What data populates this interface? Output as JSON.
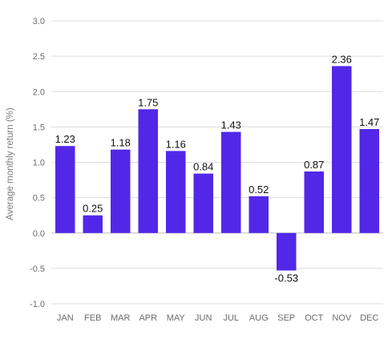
{
  "chart_data": {
    "type": "bar",
    "categories": [
      "JAN",
      "FEB",
      "MAR",
      "APR",
      "MAY",
      "JUN",
      "JUL",
      "AUG",
      "SEP",
      "OCT",
      "NOV",
      "DEC"
    ],
    "values": [
      1.23,
      0.25,
      1.18,
      1.75,
      1.16,
      0.84,
      1.43,
      0.52,
      -0.53,
      0.87,
      2.36,
      1.47
    ],
    "data_labels": [
      "1.23",
      "0.25",
      "1.18",
      "1.75",
      "1.16",
      "0.84",
      "1.43",
      "0.52",
      "-0.53",
      "0.87",
      "2.36",
      "1.47"
    ],
    "title": "",
    "xlabel": "",
    "ylabel": "Average monthly return (%)",
    "ylim": [
      -1.0,
      3.0
    ],
    "yticks": [
      -1.0,
      -0.5,
      0.0,
      0.5,
      1.0,
      1.5,
      2.0,
      2.5,
      3.0
    ],
    "ytick_labels": [
      "-1.0",
      "-0.5",
      "0.0",
      "0.5",
      "1.0",
      "1.5",
      "2.0",
      "2.5",
      "3.0"
    ],
    "grid": true,
    "legend": "none",
    "colors": {
      "bar": "#5327E8",
      "grid": "#DCDCDC",
      "text": "#111111",
      "axis_text": "#6B6B6B"
    }
  }
}
